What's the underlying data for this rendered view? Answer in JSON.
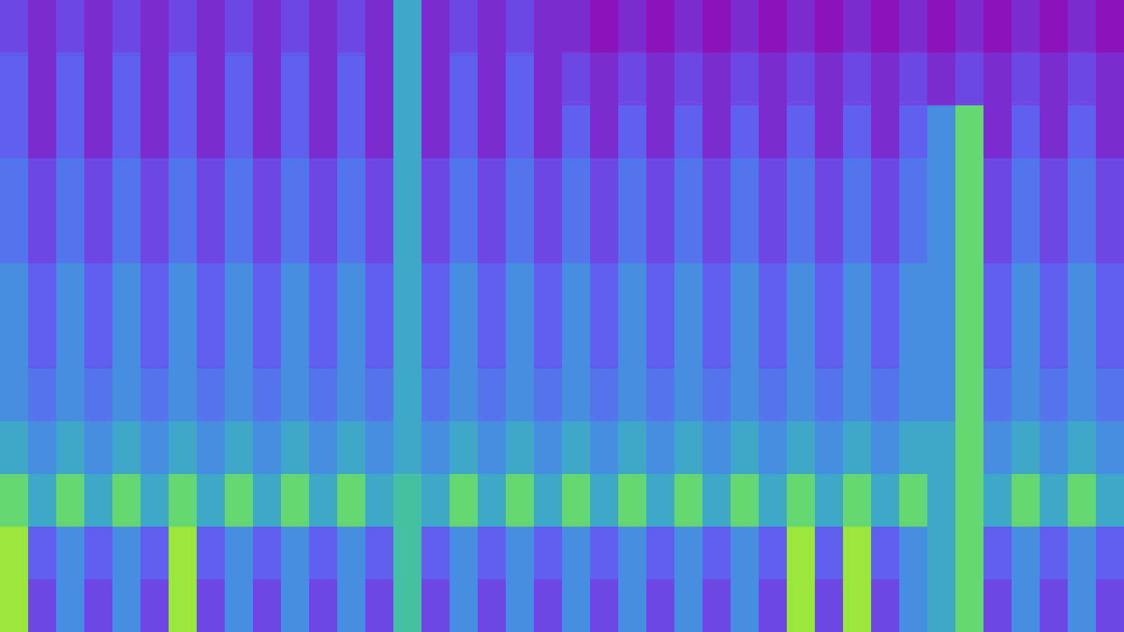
{
  "chart_data": {
    "type": "heatmap",
    "tick_labels": false,
    "cells": [
      [
        2,
        1,
        2,
        1,
        2,
        1,
        2,
        1,
        2,
        1,
        2,
        1,
        2,
        1,
        6,
        1,
        2,
        1,
        2,
        1,
        1,
        0,
        1,
        0,
        1,
        0,
        1,
        0,
        1,
        0,
        1,
        0,
        1,
        0,
        1,
        0,
        1,
        0,
        1,
        0
      ],
      [
        3,
        1,
        3,
        1,
        3,
        1,
        3,
        1,
        3,
        1,
        3,
        1,
        3,
        1,
        6,
        1,
        3,
        1,
        3,
        1,
        2,
        1,
        2,
        1,
        2,
        1,
        2,
        1,
        2,
        1,
        2,
        1,
        2,
        1,
        2,
        1,
        2,
        1,
        2,
        1
      ],
      [
        3,
        1,
        3,
        1,
        3,
        1,
        3,
        1,
        3,
        1,
        3,
        1,
        3,
        1,
        6,
        1,
        3,
        1,
        3,
        1,
        3,
        1,
        3,
        1,
        3,
        1,
        3,
        1,
        3,
        1,
        3,
        1,
        3,
        5,
        8,
        1,
        3,
        1,
        3,
        1
      ],
      [
        4,
        2,
        4,
        2,
        4,
        2,
        4,
        2,
        4,
        2,
        4,
        2,
        4,
        2,
        6,
        2,
        4,
        2,
        4,
        2,
        4,
        2,
        4,
        2,
        4,
        2,
        4,
        2,
        4,
        2,
        4,
        2,
        4,
        5,
        8,
        2,
        4,
        2,
        4,
        2
      ],
      [
        4,
        2,
        4,
        2,
        4,
        2,
        4,
        2,
        4,
        2,
        4,
        2,
        4,
        2,
        6,
        2,
        4,
        2,
        4,
        2,
        4,
        2,
        4,
        2,
        4,
        2,
        4,
        2,
        4,
        2,
        4,
        2,
        4,
        5,
        8,
        2,
        4,
        2,
        4,
        2
      ],
      [
        5,
        3,
        5,
        3,
        5,
        3,
        5,
        3,
        5,
        3,
        5,
        3,
        5,
        3,
        6,
        3,
        5,
        3,
        5,
        3,
        5,
        3,
        5,
        3,
        5,
        3,
        5,
        3,
        5,
        3,
        5,
        3,
        5,
        5,
        8,
        3,
        5,
        3,
        5,
        3
      ],
      [
        5,
        3,
        5,
        3,
        5,
        3,
        5,
        3,
        5,
        3,
        5,
        3,
        5,
        3,
        6,
        3,
        5,
        3,
        5,
        3,
        5,
        3,
        5,
        3,
        5,
        3,
        5,
        3,
        5,
        3,
        5,
        3,
        5,
        5,
        8,
        3,
        5,
        3,
        5,
        3
      ],
      [
        5,
        4,
        5,
        4,
        5,
        4,
        5,
        4,
        5,
        4,
        5,
        4,
        5,
        4,
        6,
        4,
        5,
        4,
        5,
        4,
        5,
        4,
        5,
        4,
        5,
        4,
        5,
        4,
        5,
        4,
        5,
        4,
        5,
        5,
        8,
        4,
        5,
        4,
        5,
        4
      ],
      [
        6,
        5,
        6,
        5,
        6,
        5,
        6,
        5,
        6,
        5,
        6,
        5,
        6,
        5,
        6,
        5,
        6,
        5,
        6,
        5,
        6,
        5,
        6,
        5,
        6,
        5,
        6,
        5,
        6,
        5,
        6,
        5,
        6,
        6,
        8,
        5,
        6,
        5,
        6,
        5
      ],
      [
        8,
        6,
        8,
        6,
        8,
        6,
        8,
        6,
        8,
        6,
        8,
        6,
        8,
        6,
        7,
        6,
        8,
        6,
        8,
        6,
        8,
        6,
        8,
        6,
        8,
        6,
        8,
        6,
        8,
        6,
        8,
        6,
        8,
        6,
        8,
        6,
        8,
        6,
        8,
        6
      ],
      [
        9,
        3,
        5,
        3,
        5,
        3,
        9,
        3,
        5,
        3,
        5,
        3,
        5,
        3,
        7,
        3,
        5,
        3,
        5,
        3,
        5,
        3,
        5,
        3,
        5,
        3,
        5,
        3,
        9,
        3,
        9,
        3,
        5,
        6,
        8,
        3,
        5,
        3,
        5,
        3
      ],
      [
        9,
        2,
        5,
        2,
        5,
        2,
        9,
        2,
        5,
        2,
        5,
        2,
        5,
        2,
        7,
        2,
        5,
        2,
        5,
        2,
        5,
        2,
        5,
        2,
        5,
        2,
        5,
        2,
        9,
        2,
        9,
        2,
        5,
        6,
        8,
        2,
        5,
        2,
        5,
        2
      ]
    ]
  }
}
